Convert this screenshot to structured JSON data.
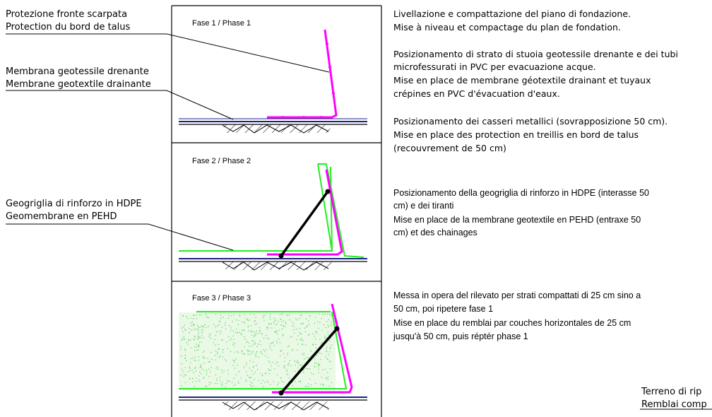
{
  "labels": {
    "protection_it": "Protezione fronte scarpata",
    "protection_fr": "Protection du bord de talus",
    "membrane_it": "Membrana geotessile drenante",
    "membrane_fr": "Membrane geotextile drainante",
    "geogrid_it": "Geogriglia di rinforzo in HDPE",
    "geogrid_fr": "Geomembrane en PEHD",
    "terrain_it": "Terreno di rip",
    "terrain_fr": "Remblai comp"
  },
  "phases": [
    {
      "title": "Fase 1 / Phase 1"
    },
    {
      "title": "Fase 2 / Phase 2"
    },
    {
      "title": "Fase 3 / Phase 3"
    }
  ],
  "notes": {
    "n1": [
      "Livellazione e compattazione del piano di fondazione.",
      "Mise à niveau et compactage du plan de fondation."
    ],
    "n2": [
      "Posizionamento di strato di stuoia geotessile drenante e dei tubi",
      "microfessurati in PVC per evacuazione acque.",
      "Mise en place de membrane géotextile drainant et tuyaux",
      "crépines en PVC d'évacuation d'eaux."
    ],
    "n3": [
      "Posizionamento dei casseri metallici (sovrapposizione 50 cm).",
      "Mise en place des protection en treillis en bord de talus",
      "(recouvrement de 50 cm)"
    ],
    "n4": [
      "Posizionamento della geogriglia di rinforzo in HDPE (interasse 50",
      "cm) e dei tiranti",
      "Mise en place de la membrane geotextile en PEHD (entraxe 50",
      "cm) et des chainages"
    ],
    "n5": [
      "Messa in opera del rilevato per strati compattati di 25 cm sino a",
      "50 cm, poi ripetere fase 1",
      "Mise en place du remblai par couches horizontales de 25 cm",
      "jusqu'à 50 cm, puis réptér phase 1"
    ]
  },
  "colors": {
    "magenta": "#ff00ff",
    "green": "#22ee22",
    "navy": "#1a237e",
    "fill_dots": "#5bd35b"
  }
}
